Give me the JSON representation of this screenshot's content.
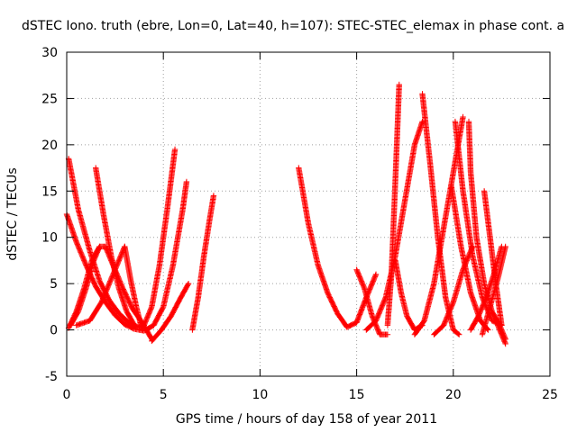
{
  "chart_data": {
    "type": "scatter",
    "title": "dSTEC Iono. truth (ebre, Lon=0, Lat=40, h=107): STEC-STEC_elemax in phase cont. a",
    "xlabel": "GPS time / hours of day 158 of year 2011",
    "ylabel": "dSTEC  / TECUs",
    "xlim": [
      0,
      25
    ],
    "ylim": [
      -5,
      30
    ],
    "xticks": [
      "0",
      "5",
      "10",
      "15",
      "20",
      "25"
    ],
    "yticks": [
      "-5",
      "0",
      "5",
      "10",
      "15",
      "20",
      "25",
      "30"
    ],
    "grid": true,
    "marker": "+",
    "color": "#ff0000",
    "series": [
      {
        "x": [
          0.1,
          0.6,
          1.2,
          1.7,
          2.2,
          2.7,
          3.2,
          3.7,
          4.0,
          4.4,
          4.8,
          5.2,
          5.6
        ],
        "y": [
          18.5,
          13,
          8.5,
          5.3,
          3.2,
          1.8,
          0.8,
          0.3,
          0.5,
          2.5,
          7,
          13,
          19.5
        ]
      },
      {
        "x": [
          0.0,
          0.5,
          1.0,
          1.5,
          2.0,
          2.5,
          3.0,
          3.5,
          4.0,
          4.5,
          5.0,
          5.5,
          6.0,
          6.2
        ],
        "y": [
          12.5,
          9.5,
          7,
          4.7,
          3,
          1.6,
          0.6,
          0.1,
          -0.1,
          0.5,
          2.5,
          7,
          13,
          16
        ]
      },
      {
        "x": [
          0.2,
          0.6,
          1.0,
          1.4,
          1.7,
          2.0
        ],
        "y": [
          0.5,
          2,
          4.5,
          7.5,
          9,
          9
        ]
      },
      {
        "x": [
          2.0,
          2.4,
          2.9,
          3.4,
          3.9,
          4.4
        ],
        "y": [
          9,
          7,
          4.5,
          2.3,
          0.8,
          -1
        ]
      },
      {
        "x": [
          4.4,
          4.9,
          5.4,
          5.9,
          6.3
        ],
        "y": [
          -1.2,
          0,
          1.5,
          3.5,
          5
        ]
      },
      {
        "x": [
          6.5,
          6.8,
          7.1,
          7.4,
          7.6
        ],
        "y": [
          0,
          3.5,
          8,
          12,
          14.5
        ]
      },
      {
        "x": [
          1.5,
          1.9,
          2.3,
          2.7,
          3.1,
          3.5
        ],
        "y": [
          17.5,
          12.5,
          8,
          4.5,
          2,
          0.5
        ]
      },
      {
        "x": [
          0.5,
          1.2,
          1.8,
          2.4,
          3.0
        ],
        "y": [
          0.5,
          1,
          3,
          6,
          9
        ]
      },
      {
        "x": [
          3.0,
          3.3,
          3.6,
          3.9
        ],
        "y": [
          9,
          5.5,
          2.5,
          0
        ]
      },
      {
        "x": [
          0.1,
          0.5,
          0.9,
          1.3,
          1.7
        ],
        "y": [
          0.2,
          2,
          4.5,
          7.5,
          9
        ]
      },
      {
        "x": [
          12.0,
          12.5,
          13.0,
          13.5,
          14.0,
          14.5,
          15.0,
          15.5,
          16.0
        ],
        "y": [
          17.5,
          11.5,
          7,
          4,
          1.8,
          0.3,
          0.8,
          3.5,
          6
        ]
      },
      {
        "x": [
          15.0,
          15.4,
          15.8,
          16.2,
          16.6
        ],
        "y": [
          6.5,
          4.5,
          1.5,
          -0.5,
          -0.5
        ]
      },
      {
        "x": [
          16.6,
          16.8,
          17.0,
          17.2
        ],
        "y": [
          0.5,
          6,
          16,
          26.5
        ]
      },
      {
        "x": [
          15.5,
          16.0,
          16.5,
          17.0,
          17.5,
          18.0,
          18.4
        ],
        "y": [
          0,
          1,
          3.5,
          8,
          14,
          20,
          22.5
        ]
      },
      {
        "x": [
          17.0,
          17.3,
          17.6,
          18.0,
          18.4
        ],
        "y": [
          7.5,
          4,
          1.5,
          0,
          0.5
        ]
      },
      {
        "x": [
          18.4,
          18.8,
          19.2,
          19.6,
          20.0,
          20.3
        ],
        "y": [
          25.5,
          18,
          10,
          3.5,
          0,
          -0.5
        ]
      },
      {
        "x": [
          18.0,
          18.5,
          19.0,
          19.5,
          20.0,
          20.5
        ],
        "y": [
          -0.5,
          1,
          5,
          11,
          17,
          23
        ]
      },
      {
        "x": [
          19.0,
          19.5,
          20.0,
          20.5,
          21.0
        ],
        "y": [
          -0.5,
          0.5,
          3,
          6.5,
          9
        ]
      },
      {
        "x": [
          19.9,
          20.4,
          20.9,
          21.4,
          21.8
        ],
        "y": [
          15.5,
          9,
          4,
          1,
          0
        ]
      },
      {
        "x": [
          20.1,
          20.5,
          21.0,
          21.5,
          22.0,
          22.5
        ],
        "y": [
          22.5,
          15,
          8,
          3.5,
          1,
          0.5
        ]
      },
      {
        "x": [
          20.8,
          20.9,
          21.2,
          21.6,
          22.0,
          22.4,
          22.7
        ],
        "y": [
          22.5,
          17,
          10,
          5,
          2,
          0.5,
          -1
        ]
      },
      {
        "x": [
          20.9,
          21.3,
          21.7,
          22.1,
          22.5
        ],
        "y": [
          0,
          1.5,
          3.5,
          6,
          9
        ]
      },
      {
        "x": [
          21.6,
          21.9,
          22.2,
          22.5
        ],
        "y": [
          15,
          10,
          5,
          0.5
        ]
      },
      {
        "x": [
          21.5,
          21.9,
          22.3,
          22.7
        ],
        "y": [
          -0.5,
          2.5,
          5.5,
          9
        ]
      },
      {
        "x": [
          22.3,
          22.5,
          22.7
        ],
        "y": [
          0.5,
          -0.5,
          -1.5
        ]
      }
    ]
  }
}
